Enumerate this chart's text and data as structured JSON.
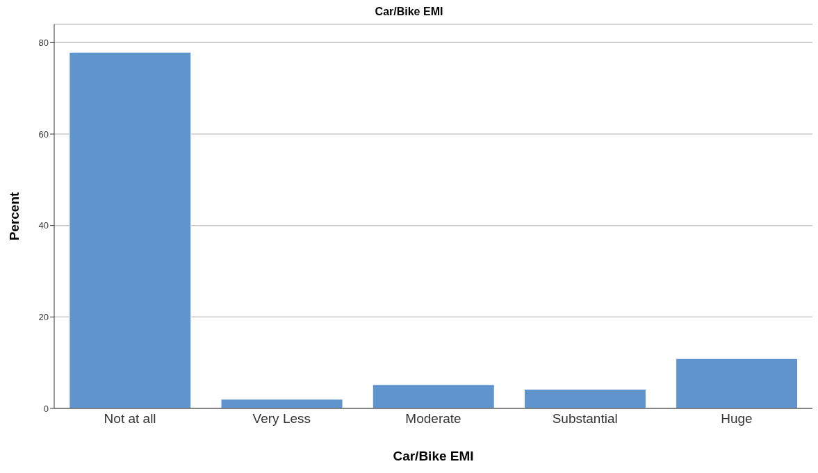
{
  "chart_data": {
    "type": "bar",
    "title": "Car/Bike EMI",
    "xlabel": "Car/Bike EMI",
    "ylabel": "Percent",
    "categories": [
      "Not at all",
      "Very Less",
      "Moderate",
      "Substantial",
      "Huge"
    ],
    "values": [
      77.9,
      2.0,
      5.2,
      4.2,
      10.9
    ],
    "color": "#6094cc",
    "ylim": [
      0,
      84
    ],
    "yticks": [
      0,
      20,
      40,
      60,
      80
    ],
    "grid": "y",
    "legend": false
  }
}
